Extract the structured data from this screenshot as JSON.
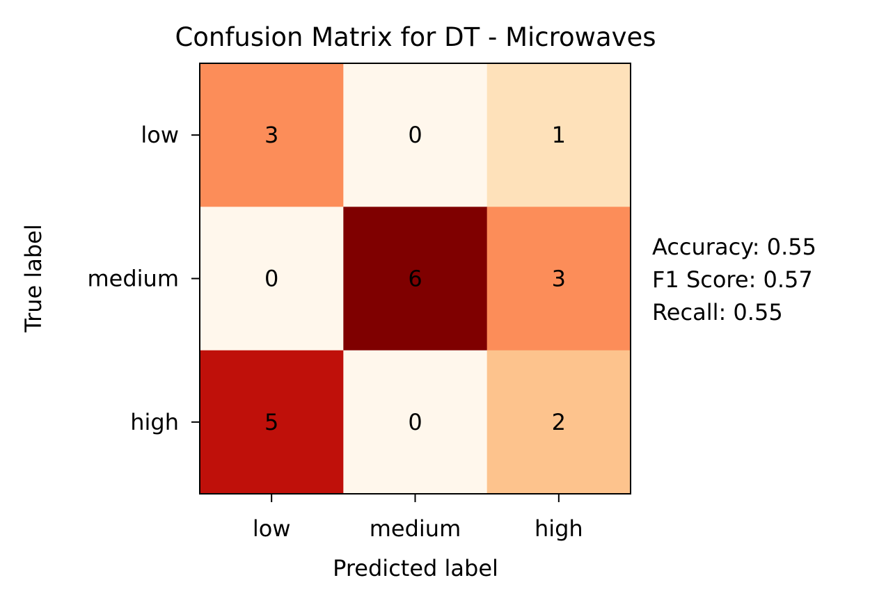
{
  "chart_data": {
    "type": "heatmap",
    "title": "Confusion Matrix for DT - Microwaves",
    "xlabel": "Predicted label",
    "ylabel": "True label",
    "x_categories": [
      "low",
      "medium",
      "high"
    ],
    "y_categories": [
      "low",
      "medium",
      "high"
    ],
    "matrix": [
      [
        3,
        0,
        1
      ],
      [
        0,
        6,
        3
      ],
      [
        5,
        0,
        2
      ]
    ],
    "colormap": "OrRd",
    "value_range": [
      0,
      6
    ],
    "grid": false,
    "metrics": [
      "Accuracy: 0.55",
      "F1 Score: 0.57",
      "Recall: 0.55"
    ],
    "colors": {
      "low": "#fff7ec",
      "high": "#7f0000",
      "text_dark": "#7f0000",
      "text_light": "#ffffff"
    }
  }
}
